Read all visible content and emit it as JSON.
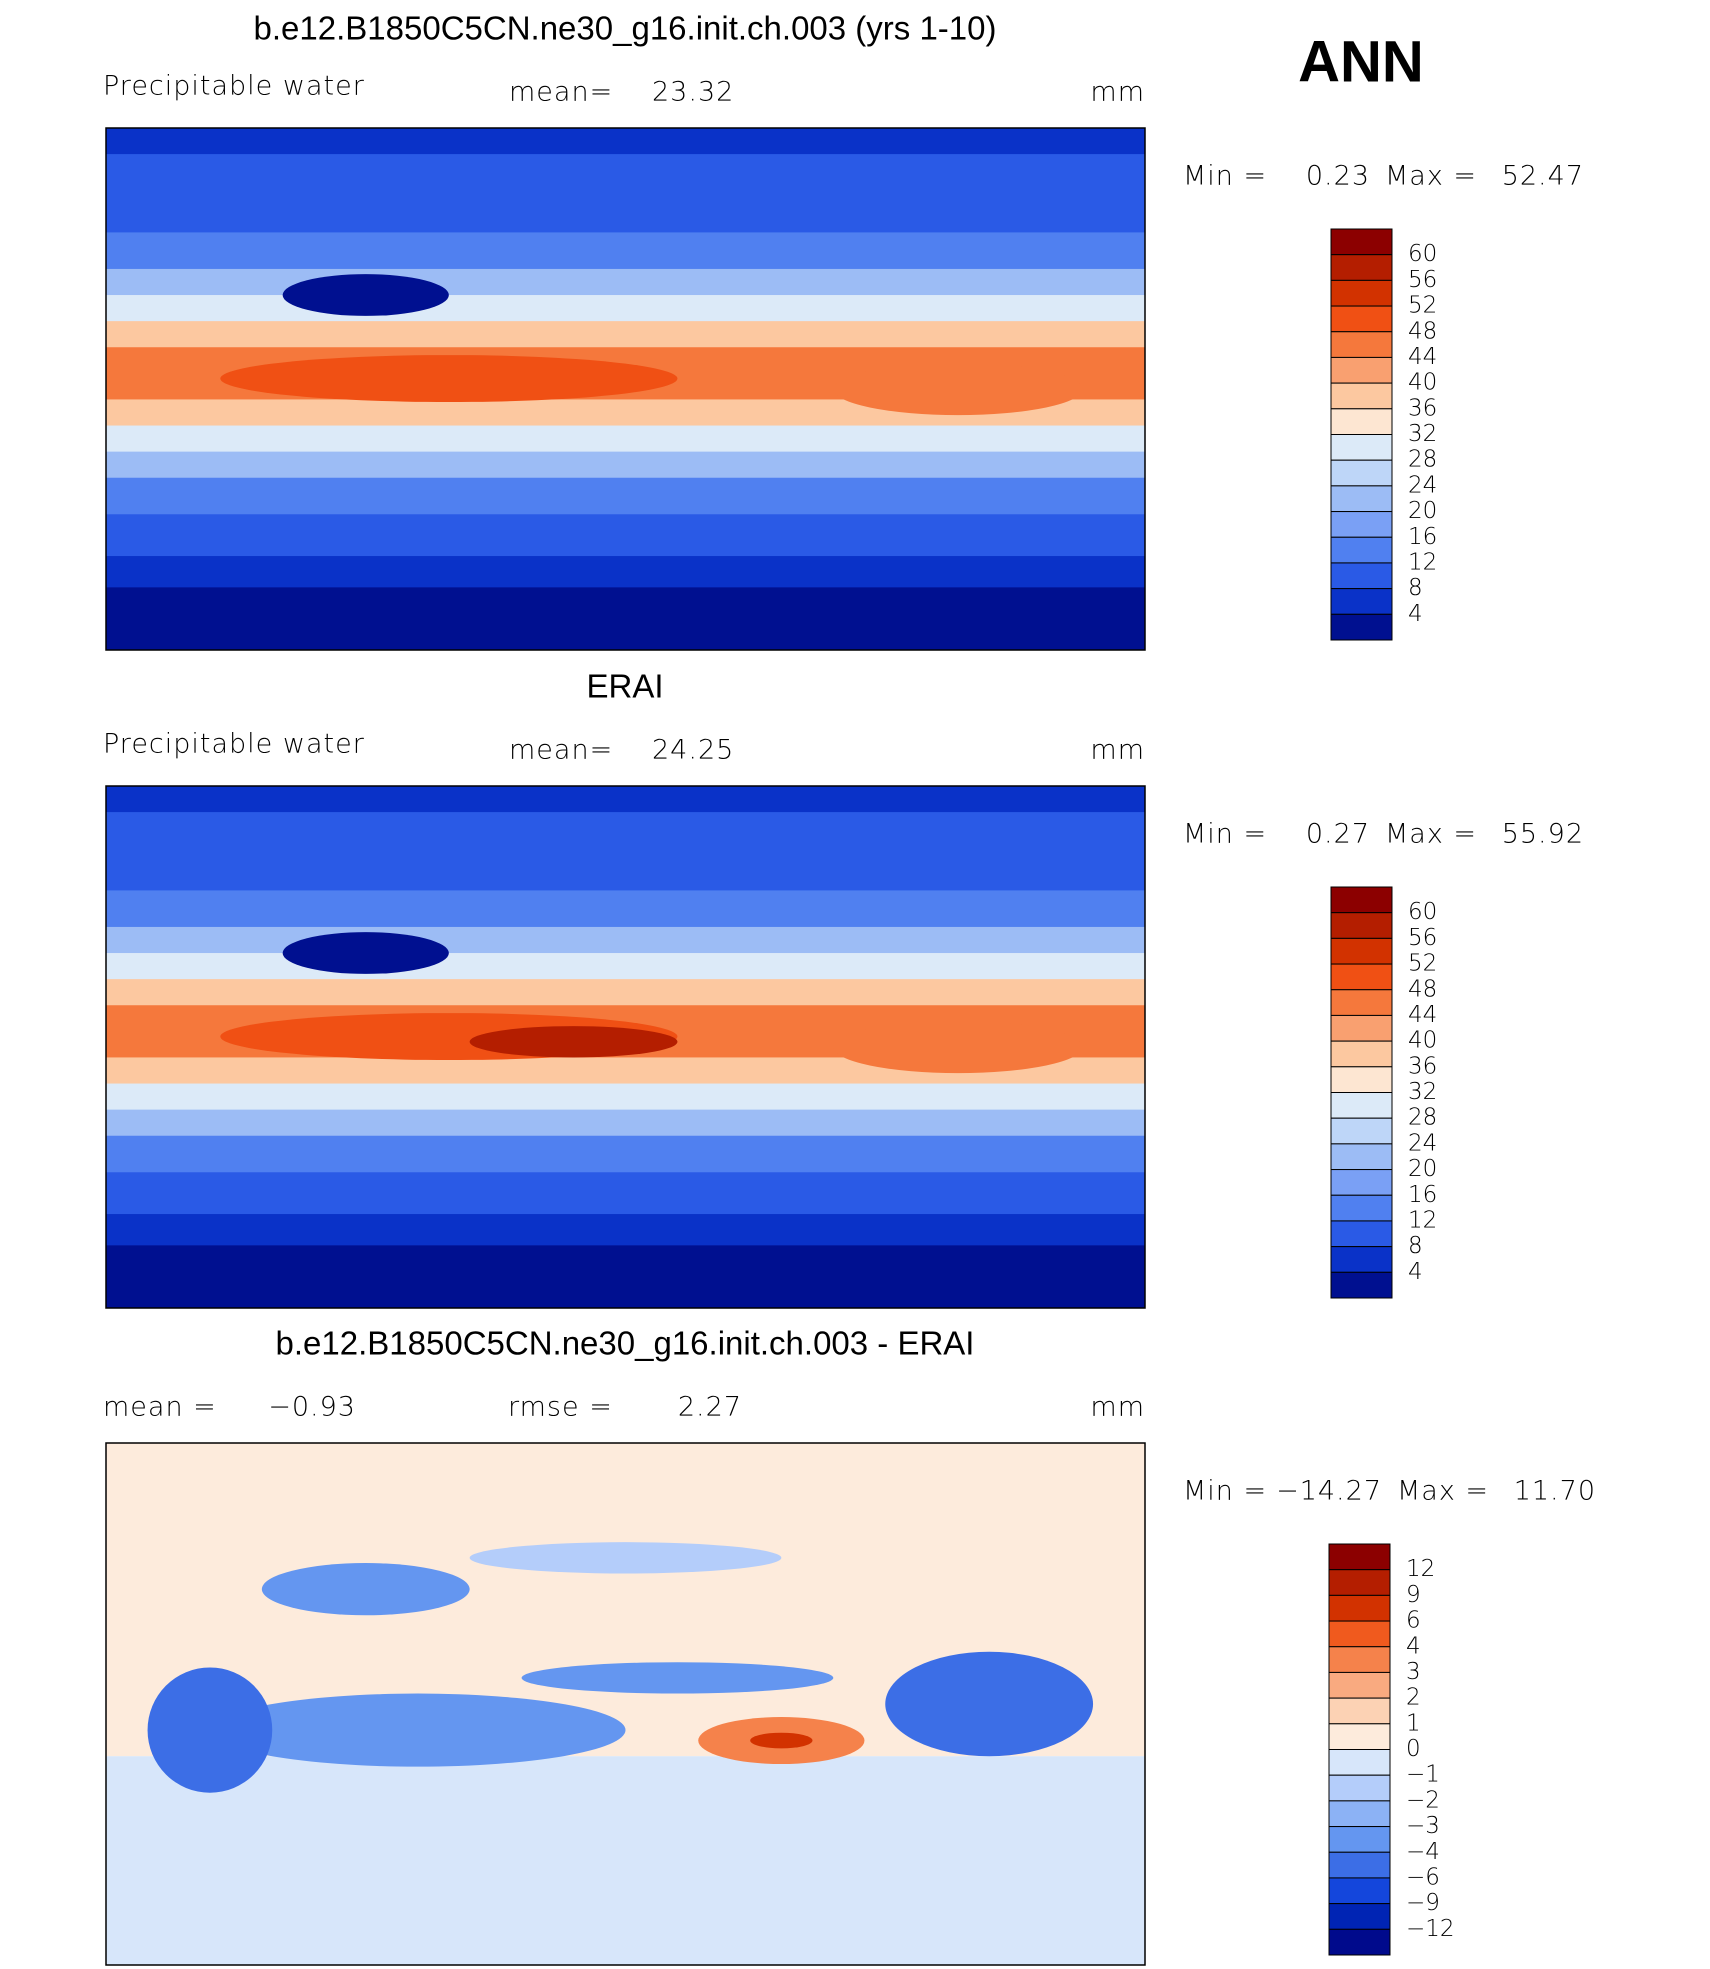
{
  "season": "ANN",
  "panels": [
    {
      "title": "b.e12.B1850C5CN.ne30_g16.init.ch.003 (yrs 1-10)",
      "variable": "Precipitable water",
      "stats": [
        {
          "label": "mean=",
          "value": "23.32"
        }
      ],
      "units": "mm",
      "min_label": "Min =",
      "min": "0.23",
      "max_label": "Max =",
      "max": "52.47",
      "colorbar": {
        "levels": [
          "60",
          "56",
          "52",
          "48",
          "44",
          "40",
          "36",
          "32",
          "28",
          "24",
          "20",
          "16",
          "12",
          "8",
          "4"
        ],
        "colors": [
          "#8c0000",
          "#b41e00",
          "#d23200",
          "#f05014",
          "#f5783c",
          "#f9a070",
          "#fcc8a0",
          "#fde6d2",
          "#dceaf8",
          "#bed6f8",
          "#9cbcf5",
          "#7aa0f5",
          "#5080f0",
          "#2a5ae6",
          "#0a32c8",
          "#001090"
        ]
      }
    },
    {
      "title": "ERAI",
      "variable": "Precipitable water",
      "stats": [
        {
          "label": "mean=",
          "value": "24.25"
        }
      ],
      "units": "mm",
      "min_label": "Min =",
      "min": "0.27",
      "max_label": "Max =",
      "max": "55.92",
      "colorbar": {
        "levels": [
          "60",
          "56",
          "52",
          "48",
          "44",
          "40",
          "36",
          "32",
          "28",
          "24",
          "20",
          "16",
          "12",
          "8",
          "4"
        ],
        "colors": [
          "#8c0000",
          "#b41e00",
          "#d23200",
          "#f05014",
          "#f5783c",
          "#f9a070",
          "#fcc8a0",
          "#fde6d2",
          "#dceaf8",
          "#bed6f8",
          "#9cbcf5",
          "#7aa0f5",
          "#5080f0",
          "#2a5ae6",
          "#0a32c8",
          "#001090"
        ]
      }
    },
    {
      "title": "b.e12.B1850C5CN.ne30_g16.init.ch.003 - ERAI",
      "stats": [
        {
          "label": "mean =",
          "value": "−0.93"
        },
        {
          "label": "rmse =",
          "value": "2.27"
        }
      ],
      "units": "mm",
      "min_label": "Min =",
      "min": "−14.27",
      "max_label": "Max =",
      "max": "11.70",
      "colorbar": {
        "levels": [
          "12",
          "9",
          "6",
          "4",
          "3",
          "2",
          "1",
          "0",
          "−1",
          "−2",
          "−3",
          "−4",
          "−6",
          "−9",
          "−12"
        ],
        "colors": [
          "#8c0000",
          "#b41e00",
          "#d23200",
          "#f05a1e",
          "#f5824b",
          "#f9aa80",
          "#fcd2b4",
          "#fdebdc",
          "#d7e6fa",
          "#b4cdfa",
          "#8cb2f5",
          "#6496f0",
          "#3c6ee6",
          "#1446dc",
          "#0024b4",
          "#000a8c"
        ]
      }
    }
  ]
}
